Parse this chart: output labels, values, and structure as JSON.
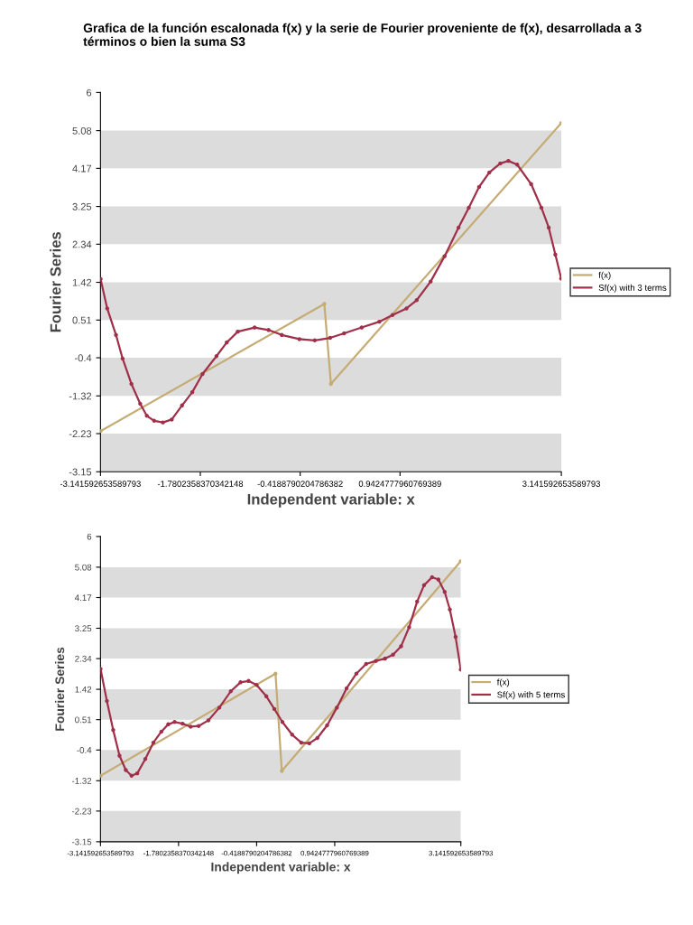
{
  "chart_data": [
    {
      "type": "line",
      "title": "Grafica de la función escalonada f(x) y la serie de Fourier proveniente de f(x), desarrollada a 3 términos o bien la suma S3",
      "xlabel": "Independent variable: x",
      "ylabel": "Fourier Series",
      "xlim": [
        -3.141592653589793,
        3.141592653589793
      ],
      "ylim": [
        -3.15,
        6
      ],
      "xticks": [
        {
          "value": -3.141592653589793,
          "label": "-3.141592653589793"
        },
        {
          "value": -1.7802358370342148,
          "label": "-1.7802358370342148"
        },
        {
          "value": -0.4188790204786382,
          "label": "-0.4188790204786382"
        },
        {
          "value": 0.9424777960769389,
          "label": "0.9424777960769389"
        },
        {
          "value": 3.141592653589793,
          "label": "3.141592653589793"
        }
      ],
      "yticks": [
        -3.15,
        -2.23,
        -1.32,
        -0.4,
        0.51,
        1.42,
        2.34,
        3.25,
        4.17,
        5.08,
        6
      ],
      "bands": [
        {
          "axis": "y",
          "from": -3.15,
          "to": -2.23,
          "color": "#dcdcdc"
        },
        {
          "axis": "y",
          "from": -1.32,
          "to": -0.4,
          "color": "#dcdcdc"
        },
        {
          "axis": "y",
          "from": 0.51,
          "to": 1.42,
          "color": "#dcdcdc"
        },
        {
          "axis": "y",
          "from": 2.34,
          "to": 3.25,
          "color": "#dcdcdc"
        },
        {
          "axis": "y",
          "from": 4.17,
          "to": 5.08,
          "color": "#dcdcdc"
        }
      ],
      "grid": false,
      "legend": "right",
      "marker": "circle",
      "line_style": "solid",
      "series": [
        {
          "name": "f(x)",
          "color": "#c4ac74",
          "x": [
            -3.14,
            -0.09,
            0.0,
            3.14
          ],
          "values": [
            -2.17,
            0.9,
            -1.03,
            5.26
          ]
        },
        {
          "name": "Sf(x) with 3 terms",
          "color": "#a0304a",
          "x": [
            -3.14,
            -3.05,
            -2.93,
            -2.84,
            -2.72,
            -2.6,
            -2.51,
            -2.41,
            -2.29,
            -2.17,
            -2.03,
            -1.89,
            -1.75,
            -1.56,
            -1.42,
            -1.27,
            -1.04,
            -0.85,
            -0.67,
            -0.43,
            -0.22,
            -0.01,
            0.18,
            0.42,
            0.66,
            0.84,
            1.03,
            1.17,
            1.36,
            1.55,
            1.74,
            1.88,
            2.02,
            2.16,
            2.31,
            2.42,
            2.54,
            2.73,
            2.87,
            2.97,
            3.06,
            3.14
          ],
          "values": [
            1.5,
            0.79,
            0.15,
            -0.42,
            -1.03,
            -1.51,
            -1.8,
            -1.92,
            -1.96,
            -1.89,
            -1.55,
            -1.23,
            -0.79,
            -0.36,
            -0.03,
            0.23,
            0.33,
            0.27,
            0.15,
            0.05,
            0.02,
            0.08,
            0.19,
            0.33,
            0.47,
            0.63,
            0.79,
            0.99,
            1.44,
            2.05,
            2.74,
            3.22,
            3.72,
            4.07,
            4.29,
            4.35,
            4.26,
            3.79,
            3.22,
            2.74,
            2.09,
            1.51
          ]
        }
      ]
    },
    {
      "type": "line",
      "xlabel": "Independent variable: x",
      "ylabel": "Fourier Series",
      "xlim": [
        -3.141592653589793,
        3.141592653589793
      ],
      "ylim": [
        -3.15,
        6
      ],
      "xticks": [
        {
          "value": -3.141592653589793,
          "label": "-3.141592653589793"
        },
        {
          "value": -1.7802358370342148,
          "label": "-1.7802358370342148"
        },
        {
          "value": -0.4188790204786382,
          "label": "-0.4188790204786382"
        },
        {
          "value": 0.9424777960769389,
          "label": "0.9424777960769389"
        },
        {
          "value": 3.141592653589793,
          "label": "3.141592653589793"
        }
      ],
      "yticks": [
        -3.15,
        -2.23,
        -1.32,
        -0.4,
        0.51,
        1.42,
        2.34,
        3.25,
        4.17,
        5.08,
        6
      ],
      "bands": [
        {
          "axis": "y",
          "from": -3.15,
          "to": -2.23,
          "color": "#dcdcdc"
        },
        {
          "axis": "y",
          "from": -1.32,
          "to": -0.4,
          "color": "#dcdcdc"
        },
        {
          "axis": "y",
          "from": 0.51,
          "to": 1.42,
          "color": "#dcdcdc"
        },
        {
          "axis": "y",
          "from": 2.34,
          "to": 3.25,
          "color": "#dcdcdc"
        },
        {
          "axis": "y",
          "from": 4.17,
          "to": 5.08,
          "color": "#dcdcdc"
        }
      ],
      "grid": false,
      "legend": "right",
      "marker": "circle",
      "line_style": "solid",
      "series": [
        {
          "name": "f(x)",
          "color": "#c4ac74",
          "x": [
            -3.14,
            -0.09,
            0.02,
            3.14
          ],
          "values": [
            -1.17,
            1.89,
            -1.03,
            5.26
          ]
        },
        {
          "name": "Sf(x) with 5 terms",
          "color": "#a0304a",
          "x": [
            -3.14,
            -3.03,
            -2.92,
            -2.81,
            -2.7,
            -2.6,
            -2.5,
            -2.36,
            -2.22,
            -2.08,
            -1.96,
            -1.85,
            -1.71,
            -1.57,
            -1.43,
            -1.26,
            -1.07,
            -0.87,
            -0.7,
            -0.56,
            -0.42,
            -0.25,
            -0.11,
            0.03,
            0.2,
            0.36,
            0.5,
            0.64,
            0.81,
            0.98,
            1.15,
            1.32,
            1.49,
            1.66,
            1.82,
            1.96,
            2.1,
            2.24,
            2.38,
            2.5,
            2.64,
            2.75,
            2.86,
            2.95,
            3.05,
            3.14
          ],
          "values": [
            2.03,
            1.07,
            0.2,
            -0.57,
            -1.0,
            -1.17,
            -1.1,
            -0.67,
            -0.18,
            0.15,
            0.37,
            0.44,
            0.39,
            0.3,
            0.32,
            0.49,
            0.87,
            1.36,
            1.63,
            1.67,
            1.55,
            1.21,
            0.83,
            0.44,
            0.06,
            -0.18,
            -0.2,
            -0.04,
            0.34,
            0.87,
            1.45,
            1.89,
            2.18,
            2.27,
            2.34,
            2.46,
            2.71,
            3.28,
            4.05,
            4.54,
            4.78,
            4.71,
            4.34,
            3.81,
            2.99,
            2.01
          ]
        }
      ]
    }
  ]
}
